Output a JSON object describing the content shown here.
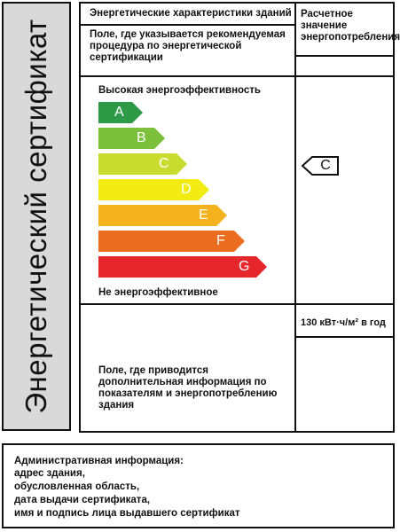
{
  "side_title": "Энергетический сертификат",
  "top_header": "Энергетические характеристики зданий",
  "recommended_note": "Поле, где указывается рекомендуемая процедура по энергетической сертификации",
  "calc_header": "Расчетное значение энергопотребления",
  "high_label": "Высокая энергоэффективность",
  "low_label": "Не энергоэффективное",
  "classes": [
    {
      "letter": "A",
      "color": "#2e9a47"
    },
    {
      "letter": "B",
      "color": "#7cbf3a"
    },
    {
      "letter": "C",
      "color": "#c7dc2e"
    },
    {
      "letter": "D",
      "color": "#f3ec12"
    },
    {
      "letter": "E",
      "color": "#f4b21c"
    },
    {
      "letter": "F",
      "color": "#ea6d22"
    },
    {
      "letter": "G",
      "color": "#e5262a"
    }
  ],
  "indicator_letter": "C",
  "consumption_value": "130 кВт·ч/м² в год",
  "additional_info": "Поле, где приводится дополнительная информация по показателям и энергопотреблению здания",
  "admin_title": "Административная информация:",
  "admin_lines": [
    "адрес здания,",
    "обусловленная область,",
    "дата выдачи сертификата,",
    "имя и подпись лица выдавшего сертификат"
  ]
}
